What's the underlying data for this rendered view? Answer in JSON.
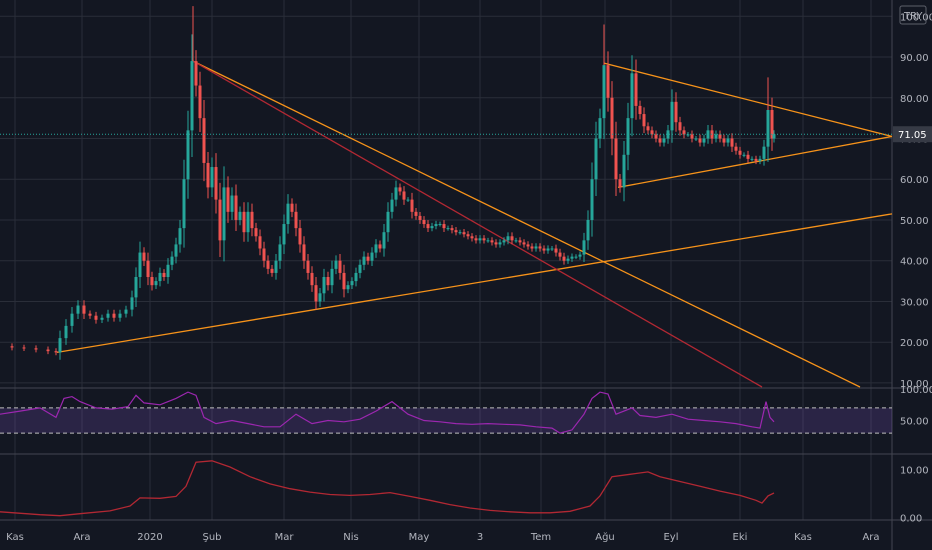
{
  "currency_badge": "TRY",
  "last_price_label": "71.05",
  "colors": {
    "background": "#131722",
    "grid": "#2a2e39",
    "up": "#26a69a",
    "down": "#ef5350",
    "trend_orange": "#f7931a",
    "trend_red": "#b22833",
    "rsi_line": "#9c27b0",
    "rsi_band": "#7e57c2",
    "lower_line": "#b22833",
    "text": "#b2b5be",
    "price_label_bg": "#363a45"
  },
  "chart_data": [
    {
      "type": "candlestick",
      "panel": "price",
      "y_ticks": [
        "100.00",
        "90.00",
        "80.00",
        "70.00",
        "60.00",
        "50.00",
        "40.00",
        "30.00",
        "20.00",
        "10.00"
      ],
      "y_tick_values": [
        100,
        90,
        80,
        70,
        60,
        50,
        40,
        30,
        20,
        10
      ],
      "ylim": [
        9,
        104
      ],
      "last_value": 71.05,
      "x_ticks": [
        "Kas",
        "Ara",
        "2020",
        "Şub",
        "Mar",
        "Nis",
        "May",
        "3",
        "Tem",
        "Ağu",
        "Eyl",
        "Eki",
        "Kas",
        "Ara"
      ],
      "series_close": [
        [
          0,
          19
        ],
        [
          12,
          18.7
        ],
        [
          24,
          18.5
        ],
        [
          36,
          18.2
        ],
        [
          48,
          17.8
        ],
        [
          56,
          17.5
        ],
        [
          60,
          21
        ],
        [
          66,
          24
        ],
        [
          72,
          27
        ],
        [
          78,
          29
        ],
        [
          84,
          27
        ],
        [
          90,
          26.5
        ],
        [
          96,
          25.5
        ],
        [
          102,
          26
        ],
        [
          108,
          27
        ],
        [
          114,
          26
        ],
        [
          120,
          27
        ],
        [
          126,
          28
        ],
        [
          132,
          31
        ],
        [
          136,
          36
        ],
        [
          140,
          42
        ],
        [
          144,
          40
        ],
        [
          148,
          36
        ],
        [
          152,
          34
        ],
        [
          156,
          35
        ],
        [
          160,
          37
        ],
        [
          164,
          36
        ],
        [
          168,
          39
        ],
        [
          172,
          41
        ],
        [
          176,
          44
        ],
        [
          180,
          48
        ],
        [
          184,
          60
        ],
        [
          188,
          72
        ],
        [
          192,
          89
        ],
        [
          196,
          83
        ],
        [
          200,
          75
        ],
        [
          204,
          64
        ],
        [
          208,
          58
        ],
        [
          212,
          63
        ],
        [
          216,
          55
        ],
        [
          220,
          45
        ],
        [
          224,
          58
        ],
        [
          228,
          52
        ],
        [
          232,
          56
        ],
        [
          236,
          50
        ],
        [
          240,
          52
        ],
        [
          244,
          47
        ],
        [
          248,
          52
        ],
        [
          252,
          48
        ],
        [
          256,
          46
        ],
        [
          260,
          43
        ],
        [
          264,
          40
        ],
        [
          268,
          38
        ],
        [
          272,
          37
        ],
        [
          276,
          40
        ],
        [
          280,
          44
        ],
        [
          284,
          49
        ],
        [
          288,
          54
        ],
        [
          292,
          52
        ],
        [
          296,
          48
        ],
        [
          300,
          44
        ],
        [
          304,
          40
        ],
        [
          308,
          37
        ],
        [
          312,
          34
        ],
        [
          316,
          30
        ],
        [
          320,
          32
        ],
        [
          324,
          36
        ],
        [
          328,
          34
        ],
        [
          332,
          38
        ],
        [
          336,
          40
        ],
        [
          340,
          37
        ],
        [
          344,
          33
        ],
        [
          348,
          34
        ],
        [
          352,
          35
        ],
        [
          356,
          37
        ],
        [
          360,
          39
        ],
        [
          364,
          41
        ],
        [
          368,
          40
        ],
        [
          372,
          42
        ],
        [
          376,
          44
        ],
        [
          380,
          43
        ],
        [
          384,
          47
        ],
        [
          388,
          52
        ],
        [
          392,
          55
        ],
        [
          396,
          58
        ],
        [
          400,
          57
        ],
        [
          404,
          55
        ],
        [
          408,
          55
        ],
        [
          412,
          52
        ],
        [
          416,
          51
        ],
        [
          420,
          50
        ],
        [
          424,
          49
        ],
        [
          428,
          48
        ],
        [
          432,
          48.5
        ],
        [
          436,
          49
        ],
        [
          440,
          49
        ],
        [
          444,
          48
        ],
        [
          448,
          48
        ],
        [
          452,
          47.5
        ],
        [
          456,
          47
        ],
        [
          460,
          47
        ],
        [
          464,
          46.5
        ],
        [
          468,
          46
        ],
        [
          472,
          45.5
        ],
        [
          476,
          45
        ],
        [
          480,
          45.5
        ],
        [
          484,
          45
        ],
        [
          488,
          45
        ],
        [
          492,
          44.5
        ],
        [
          496,
          44
        ],
        [
          500,
          44.5
        ],
        [
          504,
          45
        ],
        [
          508,
          46
        ],
        [
          512,
          45
        ],
        [
          516,
          45
        ],
        [
          520,
          44.5
        ],
        [
          524,
          44
        ],
        [
          528,
          43.5
        ],
        [
          532,
          43
        ],
        [
          536,
          43.5
        ],
        [
          540,
          43
        ],
        [
          544,
          42.5
        ],
        [
          548,
          43
        ],
        [
          552,
          43
        ],
        [
          556,
          42
        ],
        [
          560,
          41
        ],
        [
          564,
          40
        ],
        [
          568,
          40.5
        ],
        [
          572,
          41
        ],
        [
          576,
          41
        ],
        [
          580,
          41.5
        ],
        [
          584,
          45
        ],
        [
          588,
          50
        ],
        [
          592,
          60
        ],
        [
          596,
          70
        ],
        [
          600,
          75
        ],
        [
          604,
          88
        ],
        [
          608,
          80
        ],
        [
          612,
          70
        ],
        [
          616,
          60
        ],
        [
          620,
          58
        ],
        [
          624,
          66
        ],
        [
          628,
          75
        ],
        [
          632,
          86
        ],
        [
          636,
          78
        ],
        [
          640,
          76
        ],
        [
          644,
          73
        ],
        [
          648,
          72
        ],
        [
          652,
          71
        ],
        [
          656,
          70
        ],
        [
          660,
          69
        ],
        [
          664,
          70
        ],
        [
          668,
          72
        ],
        [
          672,
          79
        ],
        [
          676,
          74
        ],
        [
          680,
          72
        ],
        [
          684,
          71
        ],
        [
          688,
          71
        ],
        [
          692,
          70
        ],
        [
          696,
          70
        ],
        [
          700,
          69
        ],
        [
          704,
          70
        ],
        [
          708,
          72
        ],
        [
          712,
          70
        ],
        [
          716,
          71
        ],
        [
          720,
          70
        ],
        [
          724,
          69
        ],
        [
          728,
          70
        ],
        [
          732,
          68
        ],
        [
          736,
          67
        ],
        [
          740,
          66
        ],
        [
          744,
          66
        ],
        [
          748,
          65
        ],
        [
          752,
          65
        ],
        [
          756,
          64.5
        ],
        [
          760,
          65
        ],
        [
          764,
          68
        ],
        [
          768,
          77
        ],
        [
          772,
          70
        ],
        [
          774,
          71.05
        ]
      ],
      "trendlines": [
        {
          "color": "orange",
          "from": [
            57,
            17.5
          ],
          "to": [
            892,
            51.5
          ]
        },
        {
          "color": "orange",
          "from": [
            193,
            89
          ],
          "to": [
            860,
            9
          ]
        },
        {
          "color": "red",
          "from": [
            193,
            89
          ],
          "to": [
            762,
            9
          ]
        },
        {
          "color": "orange",
          "from": [
            604,
            88.5
          ],
          "to": [
            892,
            70.5
          ]
        },
        {
          "color": "orange",
          "from": [
            618,
            58
          ],
          "to": [
            892,
            70.5
          ]
        }
      ]
    },
    {
      "type": "line",
      "panel": "oscillator",
      "name": "",
      "y_ticks": [
        "100.00",
        "50.00"
      ],
      "y_tick_values": [
        100,
        50
      ],
      "ylim": [
        0,
        100
      ],
      "band": [
        30,
        70
      ],
      "series": [
        [
          0,
          60
        ],
        [
          20,
          65
        ],
        [
          40,
          70
        ],
        [
          56,
          55
        ],
        [
          64,
          85
        ],
        [
          72,
          88
        ],
        [
          80,
          80
        ],
        [
          96,
          70
        ],
        [
          112,
          68
        ],
        [
          128,
          72
        ],
        [
          136,
          90
        ],
        [
          144,
          78
        ],
        [
          160,
          75
        ],
        [
          176,
          85
        ],
        [
          188,
          95
        ],
        [
          196,
          90
        ],
        [
          204,
          55
        ],
        [
          216,
          45
        ],
        [
          232,
          50
        ],
        [
          248,
          45
        ],
        [
          264,
          40
        ],
        [
          280,
          40
        ],
        [
          296,
          60
        ],
        [
          312,
          45
        ],
        [
          328,
          50
        ],
        [
          344,
          48
        ],
        [
          360,
          52
        ],
        [
          376,
          65
        ],
        [
          392,
          80
        ],
        [
          408,
          60
        ],
        [
          424,
          50
        ],
        [
          440,
          48
        ],
        [
          456,
          45
        ],
        [
          472,
          44
        ],
        [
          488,
          45
        ],
        [
          504,
          44
        ],
        [
          520,
          43
        ],
        [
          536,
          40
        ],
        [
          552,
          38
        ],
        [
          560,
          30
        ],
        [
          572,
          35
        ],
        [
          584,
          60
        ],
        [
          592,
          85
        ],
        [
          600,
          95
        ],
        [
          608,
          92
        ],
        [
          616,
          60
        ],
        [
          632,
          70
        ],
        [
          640,
          58
        ],
        [
          656,
          55
        ],
        [
          672,
          60
        ],
        [
          688,
          52
        ],
        [
          704,
          50
        ],
        [
          720,
          48
        ],
        [
          736,
          45
        ],
        [
          752,
          40
        ],
        [
          760,
          38
        ],
        [
          766,
          80
        ],
        [
          770,
          55
        ],
        [
          774,
          48
        ]
      ]
    },
    {
      "type": "line",
      "panel": "lower",
      "name": "",
      "y_ticks": [
        "10.00",
        "0.00"
      ],
      "y_tick_values": [
        10,
        0
      ],
      "ylim": [
        -0.5,
        13
      ],
      "series": [
        [
          0,
          1.2
        ],
        [
          40,
          0.6
        ],
        [
          60,
          0.4
        ],
        [
          80,
          0.8
        ],
        [
          110,
          1.4
        ],
        [
          130,
          2.4
        ],
        [
          140,
          4.1
        ],
        [
          160,
          4.0
        ],
        [
          176,
          4.4
        ],
        [
          186,
          6.5
        ],
        [
          196,
          11.5
        ],
        [
          212,
          11.8
        ],
        [
          230,
          10.5
        ],
        [
          250,
          8.5
        ],
        [
          270,
          7.0
        ],
        [
          290,
          6.0
        ],
        [
          310,
          5.3
        ],
        [
          330,
          4.8
        ],
        [
          350,
          4.6
        ],
        [
          370,
          4.8
        ],
        [
          390,
          5.2
        ],
        [
          410,
          4.4
        ],
        [
          430,
          3.6
        ],
        [
          450,
          2.7
        ],
        [
          470,
          2.0
        ],
        [
          490,
          1.5
        ],
        [
          510,
          1.2
        ],
        [
          530,
          1.0
        ],
        [
          550,
          1.0
        ],
        [
          570,
          1.3
        ],
        [
          590,
          2.4
        ],
        [
          600,
          4.5
        ],
        [
          612,
          8.5
        ],
        [
          630,
          9.0
        ],
        [
          648,
          9.5
        ],
        [
          660,
          8.5
        ],
        [
          680,
          7.5
        ],
        [
          700,
          6.5
        ],
        [
          720,
          5.5
        ],
        [
          740,
          4.6
        ],
        [
          756,
          3.6
        ],
        [
          762,
          3.0
        ],
        [
          768,
          4.5
        ],
        [
          774,
          5.1
        ]
      ]
    }
  ]
}
